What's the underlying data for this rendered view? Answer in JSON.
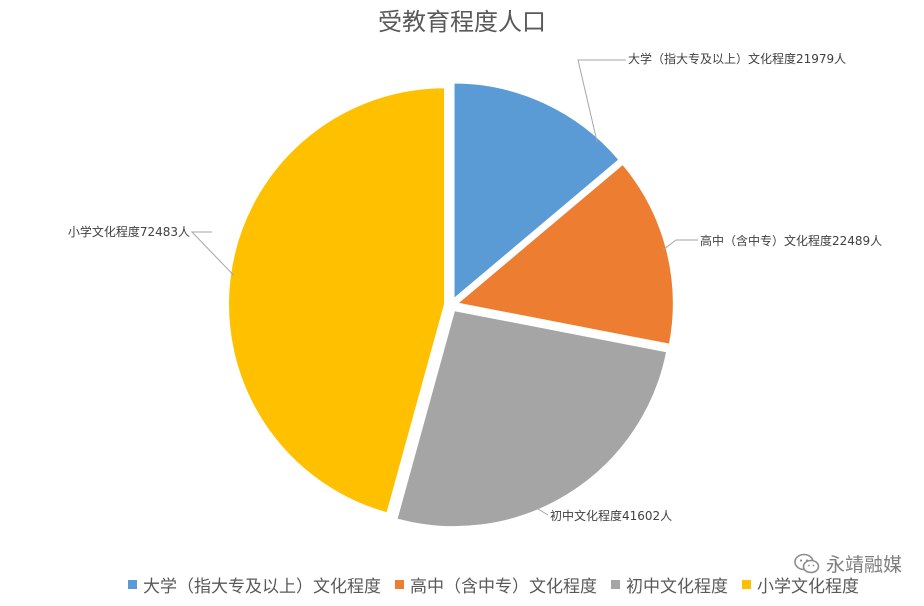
{
  "chart_data": {
    "type": "pie",
    "title": "受教育程度人口",
    "categories": [
      "大学（指大专及以上）文化程度",
      "高中（含中专）文化程度",
      "初中文化程度",
      "小学文化程度"
    ],
    "values": [
      21979,
      22489,
      41602,
      72483
    ],
    "data_labels": [
      "大学（指大专及以上）文化程度21979人",
      "高中（含中专）文化程度22489人",
      "初中文化程度41602人",
      "小学文化程度72483人"
    ],
    "colors": [
      "#5b9bd5",
      "#ed7d31",
      "#a5a5a5",
      "#ffc000"
    ],
    "legend": "bottom",
    "exploded": true
  },
  "watermark": {
    "text": "永靖融媒",
    "icon": "wechat-icon"
  }
}
